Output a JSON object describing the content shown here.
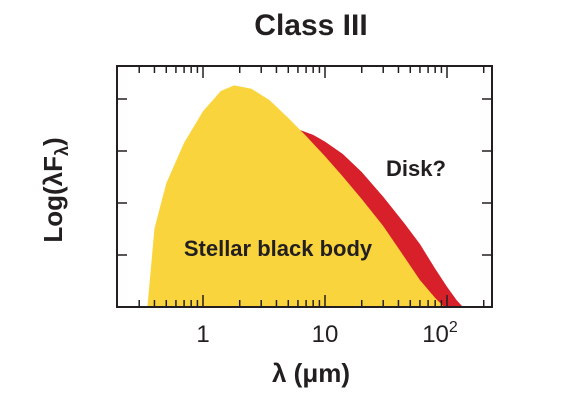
{
  "chart_data": {
    "type": "area",
    "title": "Class III",
    "xlabel": "λ (μm)",
    "ylabel": "Log(λF_λ)",
    "x_scale": "log",
    "xlim": [
      0.3,
      200
    ],
    "x_ticks": [
      {
        "value": 1,
        "label": "1"
      },
      {
        "value": 10,
        "label": "10"
      },
      {
        "value": 100,
        "label": "10",
        "sup": "2"
      }
    ],
    "y_ticks_unlabeled": 4,
    "grid": false,
    "series": [
      {
        "name": "Stellar black body",
        "color": "#f9d43c",
        "x": [
          0.35,
          0.4,
          0.5,
          0.7,
          1.0,
          1.4,
          1.8,
          2.5,
          3.5,
          5,
          7,
          10,
          14,
          20,
          30,
          45,
          60,
          80,
          95
        ],
        "y": [
          0.0,
          0.35,
          0.55,
          0.73,
          0.87,
          0.96,
          0.985,
          0.97,
          0.92,
          0.84,
          0.76,
          0.67,
          0.58,
          0.48,
          0.36,
          0.22,
          0.12,
          0.04,
          0.0
        ]
      },
      {
        "name": "Disk?",
        "color": "#d7202a",
        "x": [
          6,
          8,
          10,
          14,
          20,
          30,
          45,
          60,
          80,
          100,
          120,
          135
        ],
        "y": [
          0.79,
          0.765,
          0.735,
          0.68,
          0.6,
          0.49,
          0.37,
          0.28,
          0.17,
          0.09,
          0.03,
          0.0
        ]
      }
    ],
    "annotations": {
      "star": "Stellar black body",
      "disk": "Disk?"
    }
  }
}
